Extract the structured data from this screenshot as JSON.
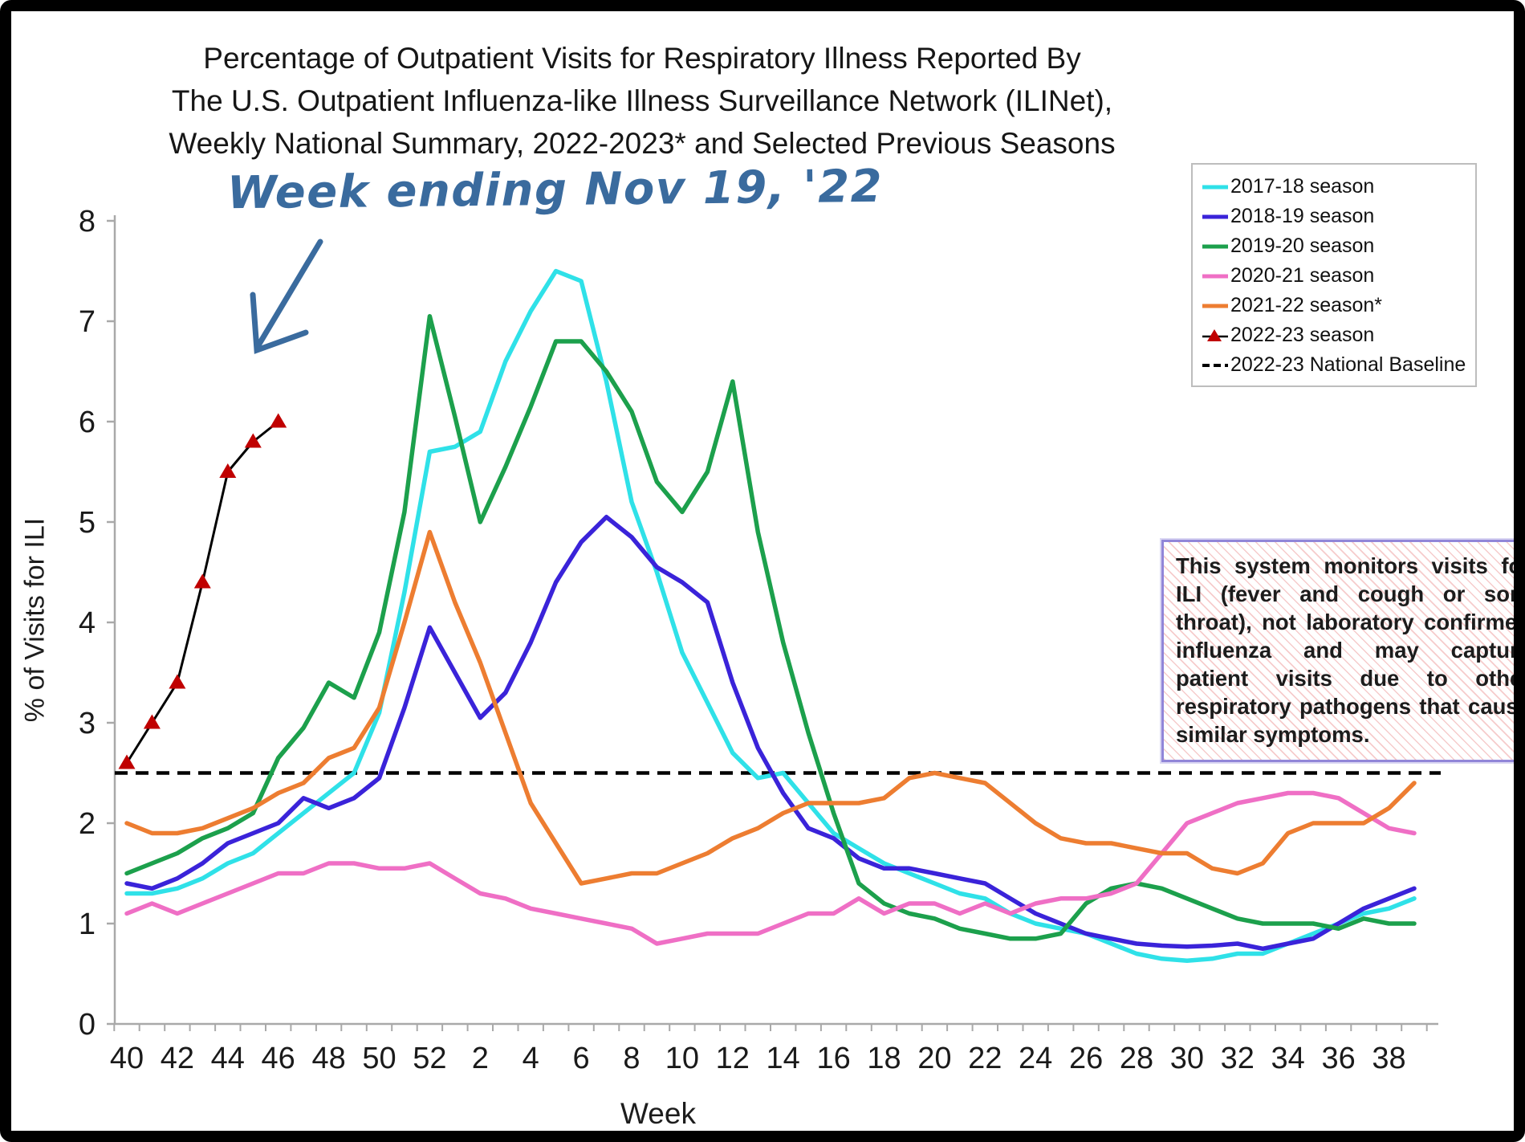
{
  "title": {
    "line1": "Percentage of Outpatient Visits for Respiratory Illness Reported By",
    "line2": "The U.S. Outpatient Influenza-like Illness Surveillance Network (ILINet),",
    "line3": "Weekly National Summary, 2022-2023* and Selected Previous Seasons"
  },
  "annotation": {
    "text": "Week ending Nov 19, '22",
    "color": "#3A6B9E"
  },
  "note_box": {
    "text": "This system monitors visits for ILI (fever and cough or sore throat), not laboratory confirmed influenza and may capture patient visits due to other respiratory pathogens that cause similar symptoms."
  },
  "legend": {
    "items": [
      {
        "label": "2017-18 season",
        "color": "#2FE1E8",
        "swatch": "line"
      },
      {
        "label": "2018-19 season",
        "color": "#3A23D9",
        "swatch": "line"
      },
      {
        "label": "2019-20 season",
        "color": "#1CA04C",
        "swatch": "line"
      },
      {
        "label": "2020-21 season",
        "color": "#EF6FC5",
        "swatch": "line"
      },
      {
        "label": "2021-22 season*",
        "color": "#ED7D31",
        "swatch": "line"
      },
      {
        "label": "2022-23 season",
        "color": "#000000",
        "swatch": "triangle-line",
        "marker_color": "#C00000"
      },
      {
        "label": "2022-23 National Baseline",
        "color": "#000000",
        "swatch": "dashed"
      }
    ]
  },
  "chart_data": {
    "type": "line",
    "title": "Percentage of Outpatient Visits for Respiratory Illness (ILINet), Weekly National Summary",
    "xlabel": "Week",
    "ylabel": "% of Visits for ILI",
    "ylim": [
      0,
      8
    ],
    "y_ticks": [
      0,
      1,
      2,
      3,
      4,
      5,
      6,
      7,
      8
    ],
    "x_tick_labels": [
      "40",
      "42",
      "44",
      "46",
      "48",
      "50",
      "52",
      "2",
      "4",
      "6",
      "8",
      "10",
      "12",
      "14",
      "16",
      "18",
      "20",
      "22",
      "24",
      "26",
      "28",
      "30",
      "32",
      "34",
      "36",
      "38"
    ],
    "weeks": [
      40,
      41,
      42,
      43,
      44,
      45,
      46,
      47,
      48,
      49,
      50,
      51,
      52,
      1,
      2,
      3,
      4,
      5,
      6,
      7,
      8,
      9,
      10,
      11,
      12,
      13,
      14,
      15,
      16,
      17,
      18,
      19,
      20,
      21,
      22,
      23,
      24,
      25,
      26,
      27,
      28,
      29,
      30,
      31,
      32,
      33,
      34,
      35,
      36,
      37,
      38,
      39
    ],
    "baseline": {
      "label": "2022-23 National Baseline",
      "value": 2.5,
      "color": "#000000"
    },
    "series": [
      {
        "name": "2017-18 season",
        "color": "#2FE1E8",
        "values": [
          1.3,
          1.3,
          1.35,
          1.45,
          1.6,
          1.7,
          1.9,
          2.1,
          2.3,
          2.5,
          3.1,
          4.3,
          5.7,
          5.75,
          5.9,
          6.6,
          7.1,
          7.5,
          7.4,
          6.4,
          5.2,
          4.5,
          3.7,
          3.2,
          2.7,
          2.45,
          2.5,
          2.2,
          1.9,
          1.75,
          1.6,
          1.5,
          1.4,
          1.3,
          1.25,
          1.1,
          1.0,
          0.95,
          0.9,
          0.8,
          0.7,
          0.65,
          0.63,
          0.65,
          0.7,
          0.7,
          0.8,
          0.9,
          1.0,
          1.1,
          1.15,
          1.25
        ]
      },
      {
        "name": "2018-19 season",
        "color": "#3A23D9",
        "values": [
          1.4,
          1.35,
          1.45,
          1.6,
          1.8,
          1.9,
          2.0,
          2.25,
          2.15,
          2.25,
          2.45,
          3.15,
          3.95,
          3.5,
          3.05,
          3.3,
          3.8,
          4.4,
          4.8,
          5.05,
          4.85,
          4.55,
          4.4,
          4.2,
          3.4,
          2.75,
          2.3,
          1.95,
          1.85,
          1.65,
          1.55,
          1.55,
          1.5,
          1.45,
          1.4,
          1.25,
          1.1,
          1.0,
          0.9,
          0.85,
          0.8,
          0.78,
          0.77,
          0.78,
          0.8,
          0.75,
          0.8,
          0.85,
          1.0,
          1.15,
          1.25,
          1.35
        ]
      },
      {
        "name": "2019-20 season",
        "color": "#1CA04C",
        "values": [
          1.5,
          1.6,
          1.7,
          1.85,
          1.95,
          2.1,
          2.65,
          2.95,
          3.4,
          3.25,
          3.9,
          5.1,
          7.05,
          6.05,
          5.0,
          5.55,
          6.15,
          6.8,
          6.8,
          6.5,
          6.1,
          5.4,
          5.1,
          5.5,
          6.4,
          4.9,
          3.8,
          2.9,
          2.1,
          1.4,
          1.2,
          1.1,
          1.05,
          0.95,
          0.9,
          0.85,
          0.85,
          0.9,
          1.2,
          1.35,
          1.4,
          1.35,
          1.25,
          1.15,
          1.05,
          1.0,
          1.0,
          1.0,
          0.95,
          1.05,
          1.0,
          1.0
        ]
      },
      {
        "name": "2020-21 season",
        "color": "#EF6FC5",
        "values": [
          1.1,
          1.2,
          1.1,
          1.2,
          1.3,
          1.4,
          1.5,
          1.5,
          1.6,
          1.6,
          1.55,
          1.55,
          1.6,
          1.45,
          1.3,
          1.25,
          1.15,
          1.1,
          1.05,
          1.0,
          0.95,
          0.8,
          0.85,
          0.9,
          0.9,
          0.9,
          1.0,
          1.1,
          1.1,
          1.25,
          1.1,
          1.2,
          1.2,
          1.1,
          1.2,
          1.1,
          1.2,
          1.25,
          1.25,
          1.3,
          1.4,
          1.7,
          2.0,
          2.1,
          2.2,
          2.25,
          2.3,
          2.3,
          2.25,
          2.1,
          1.95,
          1.9
        ]
      },
      {
        "name": "2021-22 season*",
        "color": "#ED7D31",
        "values": [
          2.0,
          1.9,
          1.9,
          1.95,
          2.05,
          2.15,
          2.3,
          2.4,
          2.65,
          2.75,
          3.15,
          4.0,
          4.9,
          4.2,
          3.6,
          2.9,
          2.2,
          1.8,
          1.4,
          1.45,
          1.5,
          1.5,
          1.6,
          1.7,
          1.85,
          1.95,
          2.1,
          2.2,
          2.2,
          2.2,
          2.25,
          2.45,
          2.5,
          2.45,
          2.4,
          2.2,
          2.0,
          1.85,
          1.8,
          1.8,
          1.75,
          1.7,
          1.7,
          1.55,
          1.5,
          1.6,
          1.9,
          2.0,
          2.0,
          2.0,
          2.15,
          2.4
        ]
      },
      {
        "name": "2022-23 season",
        "color": "#000000",
        "marker": "triangle",
        "marker_color": "#C00000",
        "width": 3,
        "values": [
          2.6,
          3.0,
          3.4,
          4.4,
          5.5,
          5.8,
          6.0
        ]
      }
    ]
  }
}
